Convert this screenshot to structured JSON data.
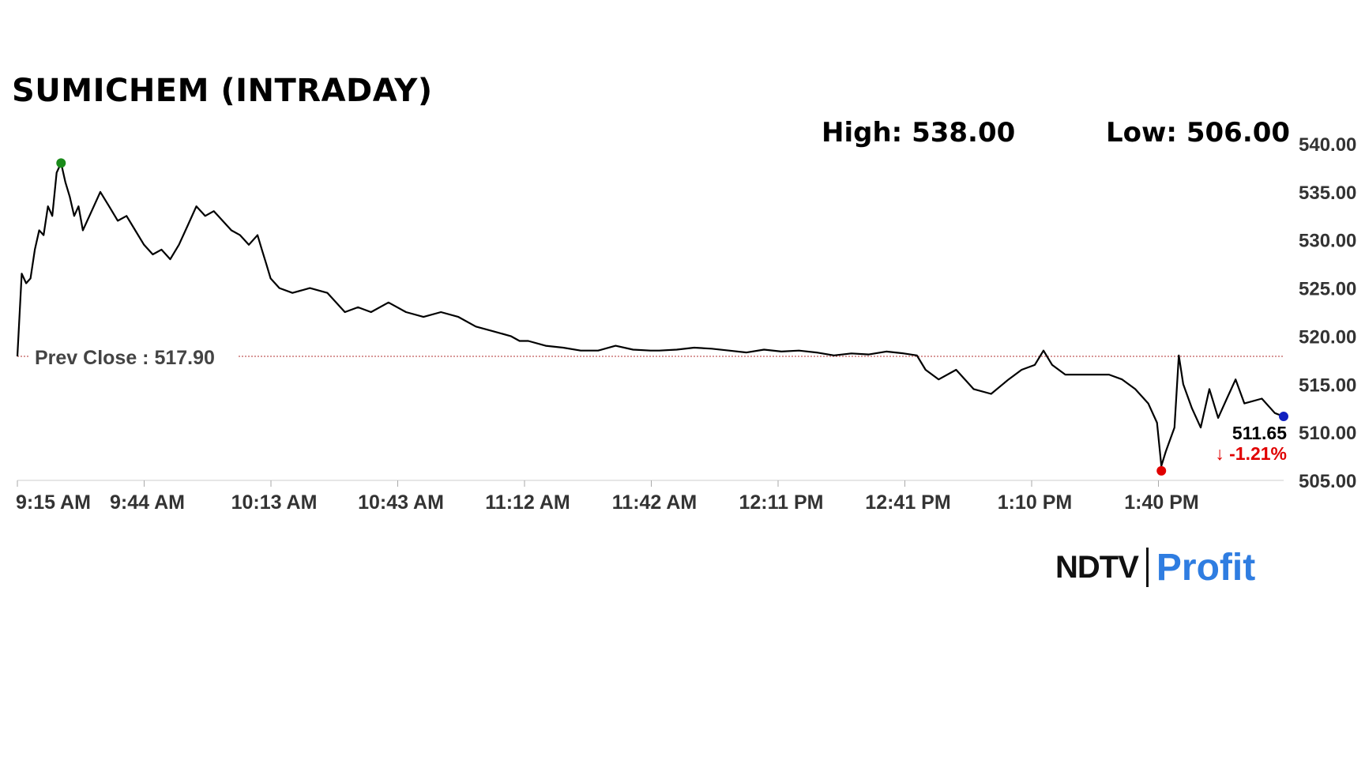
{
  "header": {
    "title": "SUMICHEM (INTRADAY)",
    "high_label": "High: 538.00",
    "low_label": "Low: 506.00"
  },
  "brand": {
    "ndtv": "NDTV",
    "profit": "Profit"
  },
  "colors": {
    "line": "#000000",
    "high_marker": "#1a8a1a",
    "low_marker": "#e00000",
    "last_marker": "#1020c0",
    "prev_close_line": "#b03030",
    "change_negative": "#e00000",
    "brand_blue": "#2f7de1",
    "brand_pink": "#e8468a"
  },
  "chart_data": {
    "type": "line",
    "title": "SUMICHEM (INTRADAY)",
    "xlabel": "",
    "ylabel": "",
    "x_tick_labels": [
      "9:15 AM",
      "9:44 AM",
      "10:13 AM",
      "10:43 AM",
      "11:12 AM",
      "11:42 AM",
      "12:11 PM",
      "12:41 PM",
      "1:10 PM",
      "1:40 PM"
    ],
    "y_tick_labels": [
      "505.00",
      "510.00",
      "515.00",
      "520.00",
      "525.00",
      "530.00",
      "535.00",
      "540.00"
    ],
    "ylim": [
      505,
      540
    ],
    "x_range": [
      "9:15",
      "14:05"
    ],
    "y_axis_position": "right",
    "grid": false,
    "prev_close": 517.9,
    "prev_close_label": "Prev Close : 517.90",
    "high": {
      "time": "9:25",
      "value": 538.0
    },
    "low": {
      "time": "13:37",
      "value": 506.0
    },
    "last": {
      "time": "14:05",
      "value": 511.65,
      "label": "511.65",
      "change_label": "-1.21%"
    },
    "series": [
      {
        "x": [
          "9:15",
          "9:16",
          "9:17",
          "9:18",
          "9:19",
          "9:20",
          "9:21",
          "9:22",
          "9:23",
          "9:24",
          "9:25",
          "9:26",
          "9:27",
          "9:28",
          "9:29",
          "9:30",
          "9:32",
          "9:34",
          "9:36",
          "9:38",
          "9:40",
          "9:42",
          "9:44",
          "9:46",
          "9:48",
          "9:50",
          "9:52",
          "9:54",
          "9:56",
          "9:58",
          "10:00",
          "10:02",
          "10:04",
          "10:06",
          "10:08",
          "10:10",
          "10:11",
          "10:12",
          "10:13",
          "10:15",
          "10:18",
          "10:22",
          "10:26",
          "10:30",
          "10:33",
          "10:36",
          "10:40",
          "10:44",
          "10:48",
          "10:52",
          "10:56",
          "11:00",
          "11:04",
          "11:08",
          "11:10",
          "11:12",
          "11:16",
          "11:20",
          "11:24",
          "11:28",
          "11:32",
          "11:36",
          "11:40",
          "11:42",
          "11:46",
          "11:50",
          "11:54",
          "11:58",
          "12:02",
          "12:06",
          "12:10",
          "12:14",
          "12:18",
          "12:22",
          "12:26",
          "12:30",
          "12:34",
          "12:38",
          "12:41",
          "12:43",
          "12:46",
          "12:50",
          "12:54",
          "12:58",
          "13:02",
          "13:05",
          "13:08",
          "13:10",
          "13:12",
          "13:15",
          "13:20",
          "13:25",
          "13:28",
          "13:31",
          "13:34",
          "13:36",
          "13:37",
          "13:38",
          "13:40",
          "13:41",
          "13:42",
          "13:44",
          "13:46",
          "13:48",
          "13:50",
          "13:52",
          "13:54",
          "13:56",
          "14:00",
          "14:03",
          "14:05"
        ],
        "y": [
          517.9,
          526.5,
          525.5,
          526.0,
          529.0,
          531.0,
          530.5,
          533.5,
          532.5,
          537.0,
          538.0,
          536.0,
          534.5,
          532.5,
          533.5,
          531.0,
          533.0,
          535.0,
          533.5,
          532.0,
          532.5,
          531.0,
          529.5,
          528.5,
          529.0,
          528.0,
          529.5,
          531.5,
          533.5,
          532.5,
          533.0,
          532.0,
          531.0,
          530.5,
          529.5,
          530.5,
          529.0,
          527.5,
          526.0,
          525.0,
          524.5,
          525.0,
          524.5,
          522.5,
          523.0,
          522.5,
          523.5,
          522.5,
          522.0,
          522.5,
          522.0,
          521.0,
          520.5,
          520.0,
          519.5,
          519.5,
          519.0,
          518.8,
          518.5,
          518.5,
          519.0,
          518.6,
          518.5,
          518.5,
          518.6,
          518.8,
          518.7,
          518.5,
          518.3,
          518.6,
          518.4,
          518.5,
          518.3,
          518.0,
          518.2,
          518.1,
          518.4,
          518.2,
          518.0,
          516.5,
          515.5,
          516.5,
          514.5,
          514.0,
          515.5,
          516.5,
          517.0,
          518.5,
          517.0,
          516.0,
          516.0,
          516.0,
          515.5,
          514.5,
          513.0,
          511.0,
          506.5,
          508.0,
          510.5,
          518.0,
          515.0,
          512.5,
          510.5,
          514.5,
          511.5,
          513.5,
          515.5,
          513.0,
          513.5,
          512.0,
          511.65
        ]
      }
    ]
  }
}
